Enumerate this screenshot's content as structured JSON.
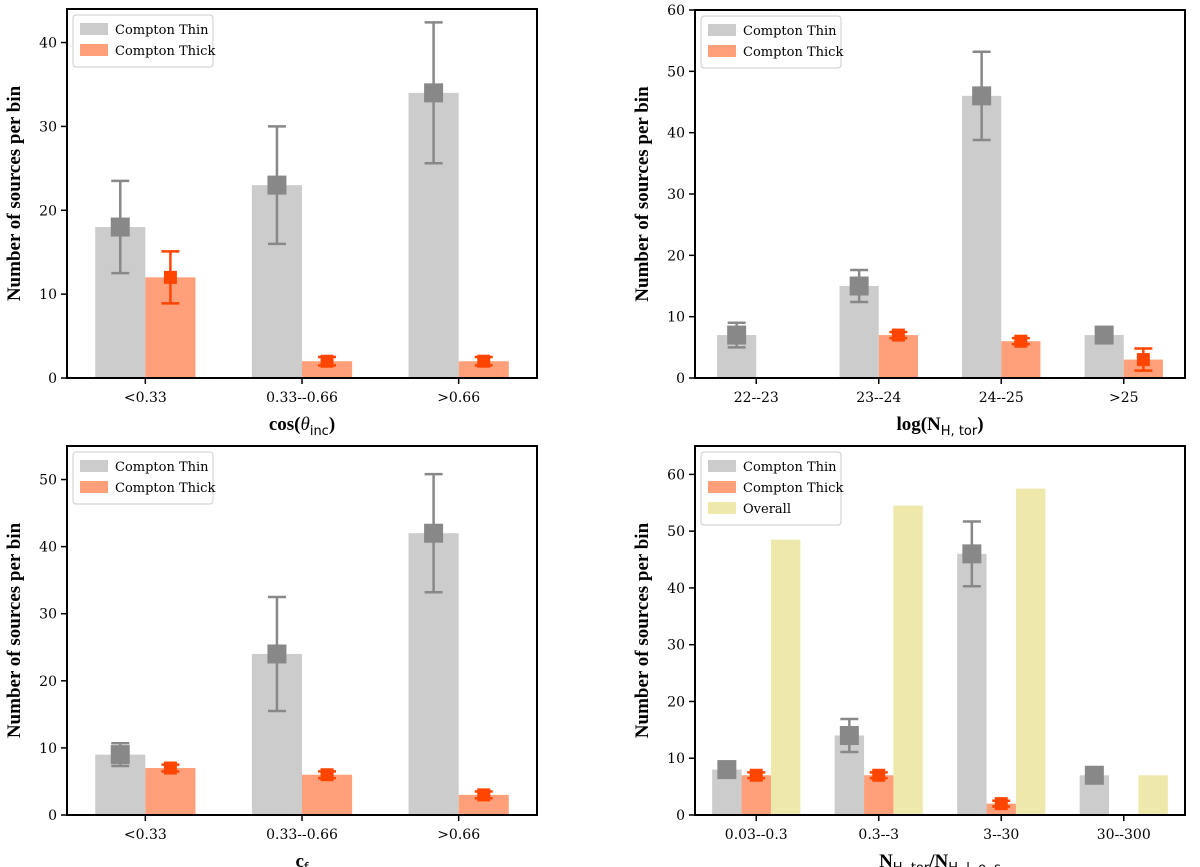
{
  "colors": {
    "thin": "#cccccc",
    "thin_marker": "#888888",
    "thick": "#ffa07a",
    "thick_marker": "#ff4500",
    "overall": "#eee8aa"
  },
  "legend_labels": {
    "thin": "Compton Thin",
    "thick": "Compton Thick",
    "overall": "Overall"
  },
  "chart_data": [
    {
      "type": "bar",
      "xlabel": "cos(θinc)",
      "xlabel_main": "cos(",
      "xlabel_theta": "θ",
      "xlabel_sub": "inc",
      "xlabel_close": ")",
      "ylabel": "Number of sources per bin",
      "categories": [
        "<0.33",
        "0.33--0.66",
        ">0.66"
      ],
      "ylim": [
        0,
        44
      ],
      "yticks": [
        0,
        10,
        20,
        30,
        40
      ],
      "legend_position": "top-left",
      "series": [
        {
          "name": "Compton Thin",
          "key": "thin",
          "values": [
            18,
            23,
            34
          ],
          "err": [
            5.5,
            7,
            8.4
          ]
        },
        {
          "name": "Compton Thick",
          "key": "thick",
          "values": [
            12,
            2,
            2
          ],
          "err": [
            3.1,
            0.5,
            0.5
          ]
        }
      ]
    },
    {
      "type": "bar",
      "xlabel": "log(NH, tor)",
      "xlabel_main": "log(N",
      "xlabel_sub": "H, tor",
      "xlabel_close": ")",
      "ylabel": "Number of sources per bin",
      "categories": [
        "22--23",
        "23--24",
        "24--25",
        ">25"
      ],
      "ylim": [
        0,
        60
      ],
      "yticks": [
        0,
        10,
        20,
        30,
        40,
        50,
        60
      ],
      "legend_position": "top-left",
      "series": [
        {
          "name": "Compton Thin",
          "key": "thin",
          "values": [
            7,
            15,
            46,
            7
          ],
          "err": [
            2,
            2.6,
            7.2,
            1.2
          ]
        },
        {
          "name": "Compton Thick",
          "key": "thick",
          "values": [
            0,
            7,
            6,
            3
          ],
          "err": [
            0,
            0.5,
            0.5,
            1.8
          ]
        }
      ]
    },
    {
      "type": "bar",
      "xlabel": "cf",
      "xlabel_main": "c",
      "xlabel_sub": "f",
      "xlabel_close": "",
      "ylabel": "Number of sources per bin",
      "categories": [
        "<0.33",
        "0.33--0.66",
        ">0.66"
      ],
      "ylim": [
        0,
        55
      ],
      "yticks": [
        0,
        10,
        20,
        30,
        40,
        50
      ],
      "legend_position": "top-left",
      "series": [
        {
          "name": "Compton Thin",
          "key": "thin",
          "values": [
            9,
            24,
            42
          ],
          "err": [
            1.7,
            8.5,
            8.8
          ]
        },
        {
          "name": "Compton Thick",
          "key": "thick",
          "values": [
            7,
            6,
            3
          ],
          "err": [
            0.5,
            0.5,
            0.5
          ]
        }
      ]
    },
    {
      "type": "bar",
      "xlabel": "NH, tor/NH, l. o. s",
      "xlabel_main": "N",
      "xlabel_sub": "H, tor",
      "xlabel_mid": "/N",
      "xlabel_sub2": "H, l. o. s",
      "xlabel_close": "",
      "ylabel": "Number of sources per bin",
      "categories": [
        "0.03--0.3",
        "0.3--3",
        "3--30",
        "30--300"
      ],
      "ylim": [
        0,
        65
      ],
      "yticks": [
        0,
        10,
        20,
        30,
        40,
        50,
        60
      ],
      "legend_position": "top-left",
      "series": [
        {
          "name": "Compton Thin",
          "key": "thin",
          "values": [
            8,
            14,
            46,
            7
          ],
          "err": [
            0.5,
            2.9,
            5.7,
            0.5
          ]
        },
        {
          "name": "Compton Thick",
          "key": "thick",
          "values": [
            7,
            7,
            2,
            0
          ],
          "err": [
            0.5,
            0.5,
            0.5,
            0
          ]
        },
        {
          "name": "Overall",
          "key": "overall",
          "values": [
            48.5,
            54.5,
            57.5,
            7
          ],
          "err": null
        }
      ]
    }
  ]
}
